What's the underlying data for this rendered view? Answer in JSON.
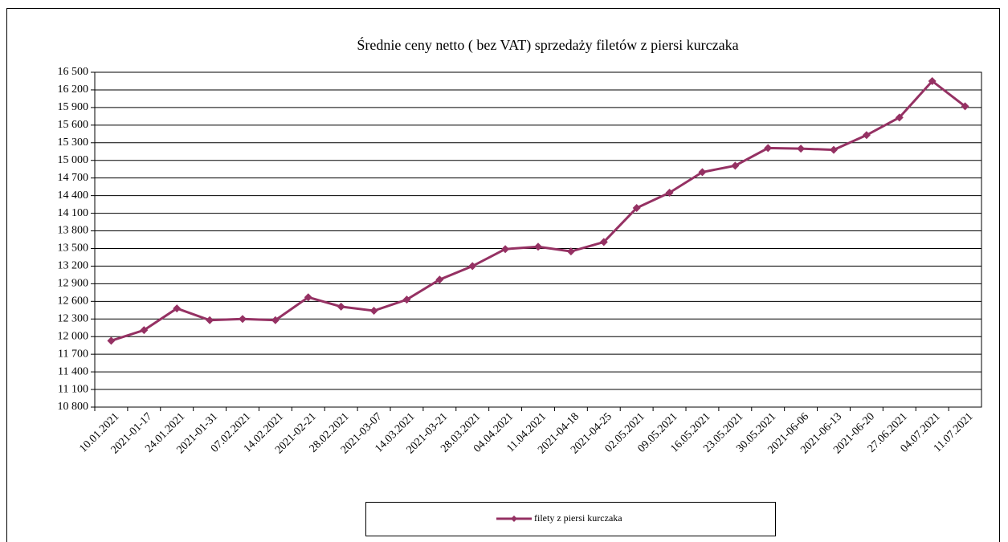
{
  "chart_data": {
    "type": "line",
    "title": "Średnie ceny netto ( bez VAT) sprzedaży filetów z piersi kurczaka",
    "categories": [
      "10.01.2021",
      "2021-01-17",
      "24.01.2021",
      "2021-01-31",
      "07.02.2021",
      "14.02.2021",
      "2021-02-21",
      "28.02.2021",
      "2021-03-07",
      "14.03.2021",
      "2021-03-21",
      "28.03.2021",
      "04.04.2021",
      "11.04.2021",
      "2021-04-18",
      "2021-04-25",
      "02.05.2021",
      "09.05.2021",
      "16.05.2021",
      "23.05.2021",
      "30.05.2021",
      "2021-06-06",
      "2021-06-13",
      "2021-06-20",
      "27.06.2021",
      "04.07.2021",
      "11.07.2021"
    ],
    "series": [
      {
        "name": "filety z piersi kurczaka",
        "color": "#953163",
        "values": [
          11930,
          12110,
          12480,
          12280,
          12300,
          12280,
          12670,
          12510,
          12440,
          12630,
          12970,
          13200,
          13490,
          13530,
          13450,
          13610,
          14190,
          14450,
          14800,
          14910,
          15210,
          15200,
          15180,
          15430,
          15730,
          16350,
          15920
        ]
      }
    ],
    "ylim": [
      10800,
      16500
    ],
    "yticks": [
      {
        "value": 10800,
        "label": "10 800"
      },
      {
        "value": 11100,
        "label": "11 100"
      },
      {
        "value": 11400,
        "label": "11 400"
      },
      {
        "value": 11700,
        "label": "11 700"
      },
      {
        "value": 12000,
        "label": "12 000"
      },
      {
        "value": 12300,
        "label": "12 300"
      },
      {
        "value": 12600,
        "label": "12 600"
      },
      {
        "value": 12900,
        "label": "12 900"
      },
      {
        "value": 13200,
        "label": "13 200"
      },
      {
        "value": 13500,
        "label": "13 500"
      },
      {
        "value": 13800,
        "label": "13 800"
      },
      {
        "value": 14100,
        "label": "14 100"
      },
      {
        "value": 14400,
        "label": "14 400"
      },
      {
        "value": 14700,
        "label": "14 700"
      },
      {
        "value": 15000,
        "label": "15 000"
      },
      {
        "value": 15300,
        "label": "15 300"
      },
      {
        "value": 15600,
        "label": "15 600"
      },
      {
        "value": 15900,
        "label": "15 900"
      },
      {
        "value": 16200,
        "label": "16 200"
      },
      {
        "value": 16500,
        "label": "16 500"
      }
    ],
    "grid": true,
    "legend": "bottom"
  }
}
